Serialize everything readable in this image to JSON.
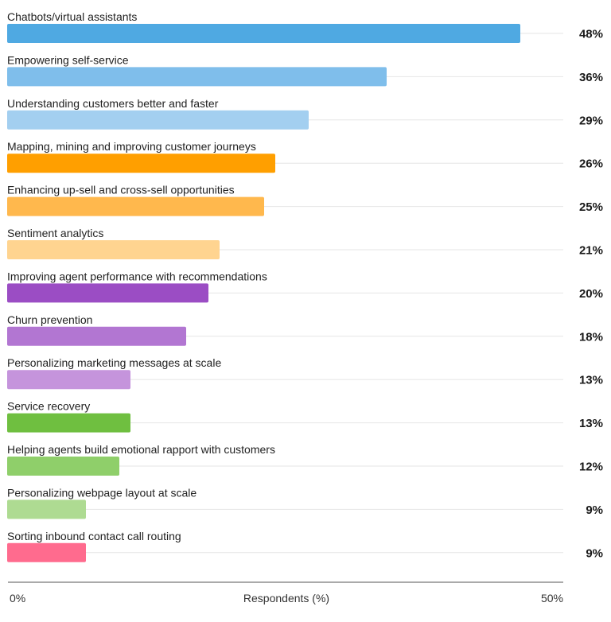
{
  "chart_data": {
    "type": "bar",
    "orientation": "horizontal",
    "categories": [
      "Chatbots/virtual assistants",
      "Empowering self-service",
      "Understanding customers better and faster",
      "Mapping, mining and improving customer journeys",
      "Enhancing up-sell and cross-sell opportunities",
      "Sentiment analytics",
      "Improving agent performance with recommendations",
      "Churn prevention",
      "Personalizing marketing messages at scale",
      "Service recovery",
      "Helping agents build emotional rapport with customers",
      "Personalizing webpage layout at scale",
      "Sorting inbound contact call routing"
    ],
    "values": [
      48,
      36,
      29,
      26,
      25,
      21,
      20,
      18,
      13,
      13,
      12,
      9,
      9
    ],
    "value_labels": [
      "48%",
      "36%",
      "29%",
      "26%",
      "25%",
      "21%",
      "20%",
      "18%",
      "13%",
      "13%",
      "12%",
      "9%",
      "9%"
    ],
    "colors": [
      "#4fa9e2",
      "#7fbeeb",
      "#a3cff0",
      "#ff9f00",
      "#ffb84d",
      "#ffd490",
      "#9b4dc4",
      "#b276d2",
      "#c594dc",
      "#6fbf40",
      "#8fcf6a",
      "#aedb92",
      "#ff6b8e"
    ],
    "xlabel": "Respondents (%)",
    "xlim": [
      0,
      50
    ],
    "x_tick_labels": [
      "0%",
      "50%"
    ],
    "grid": true
  }
}
